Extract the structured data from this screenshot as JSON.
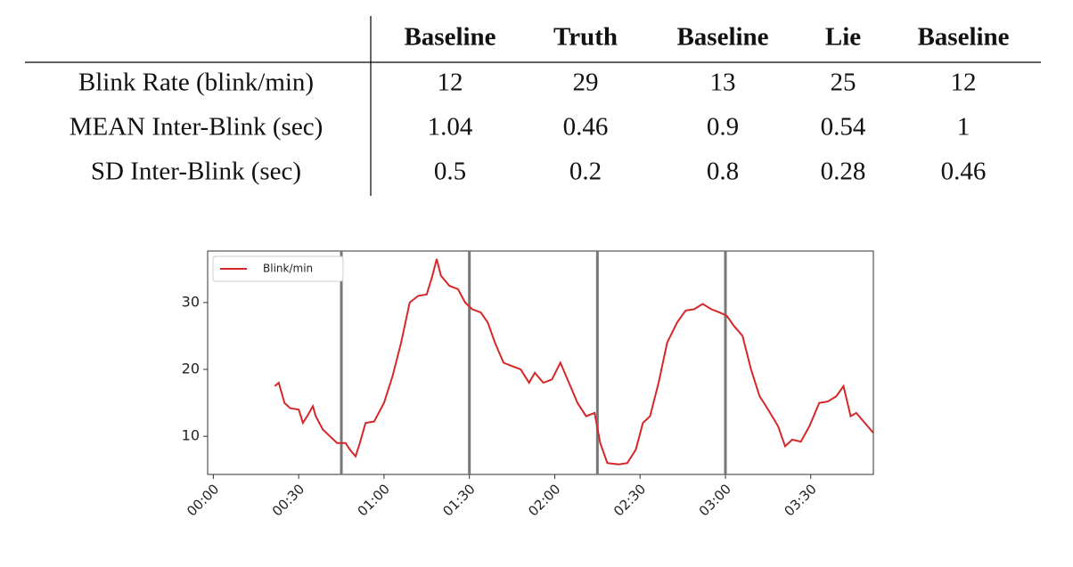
{
  "table": {
    "columns": [
      "Baseline",
      "Truth",
      "Baseline",
      "Lie",
      "Baseline"
    ],
    "rows": [
      {
        "label": "Blink Rate (blink/min)",
        "cells": [
          12,
          29,
          13,
          25,
          12
        ]
      },
      {
        "label": "MEAN Inter-Blink (sec)",
        "cells": [
          1.04,
          0.46,
          0.9,
          0.54,
          1
        ]
      },
      {
        "label": "SD Inter-Blink (sec)",
        "cells": [
          0.5,
          0.2,
          0.8,
          0.28,
          0.46
        ]
      }
    ]
  },
  "chart_data": {
    "type": "line",
    "x": [
      21.6,
      23,
      25,
      27,
      30,
      31.5,
      33,
      35,
      36,
      38.5,
      41,
      43.5,
      46.5,
      48,
      50,
      51.5,
      53.5,
      56.5,
      60,
      63,
      66,
      69,
      72,
      75,
      77,
      78.5,
      80,
      83,
      86,
      88.5,
      91,
      94,
      96.5,
      99,
      102,
      105,
      108,
      111,
      113,
      116,
      119,
      122,
      125,
      128,
      131,
      134,
      136,
      138.5,
      142.5,
      145.5,
      148.5,
      151,
      153.5,
      156.5,
      159.5,
      163,
      166,
      169,
      172,
      175,
      178,
      180.5,
      183,
      186,
      189,
      192,
      195,
      198.5,
      201,
      203.5,
      206.5,
      209.5,
      213,
      216,
      219,
      221.5,
      224,
      226,
      229,
      232
    ],
    "series": [
      {
        "name": "Blink/min",
        "color": "#d62728",
        "values": [
          17.5,
          18,
          15,
          14.2,
          14,
          12,
          13,
          14.5,
          13,
          11,
          10,
          9,
          9,
          8,
          7,
          9,
          12,
          12.2,
          15,
          19,
          24,
          30,
          31,
          31.2,
          34,
          36.5,
          34,
          32.5,
          32,
          30,
          29,
          28.5,
          27,
          24,
          21,
          20.5,
          20,
          18,
          19.5,
          18,
          18.5,
          21,
          18,
          15,
          13,
          13.5,
          9,
          6,
          5.8,
          6,
          8,
          12,
          13,
          18,
          24,
          27,
          28.8,
          29,
          29.8,
          29,
          28.5,
          28,
          26.5,
          25,
          20,
          16,
          14,
          11.5,
          8.5,
          9.5,
          9.2,
          11.5,
          15,
          15.2,
          16,
          17.5,
          13,
          13.5,
          12,
          10.5
        ]
      }
    ],
    "xlim": [
      -2,
      232
    ],
    "ylim": [
      4.3,
      37.7
    ],
    "xticks": [
      {
        "value": 0,
        "label": "00:00"
      },
      {
        "value": 30,
        "label": "00:30"
      },
      {
        "value": 60,
        "label": "01:00"
      },
      {
        "value": 90,
        "label": "01:30"
      },
      {
        "value": 120,
        "label": "02:00"
      },
      {
        "value": 150,
        "label": "02:30"
      },
      {
        "value": 180,
        "label": "03:00"
      },
      {
        "value": 210,
        "label": "03:30"
      }
    ],
    "yticks": [
      10,
      20,
      30
    ],
    "vlines": [
      45,
      90,
      135,
      180
    ],
    "vline_color": "#777777",
    "legend": "upper left"
  }
}
